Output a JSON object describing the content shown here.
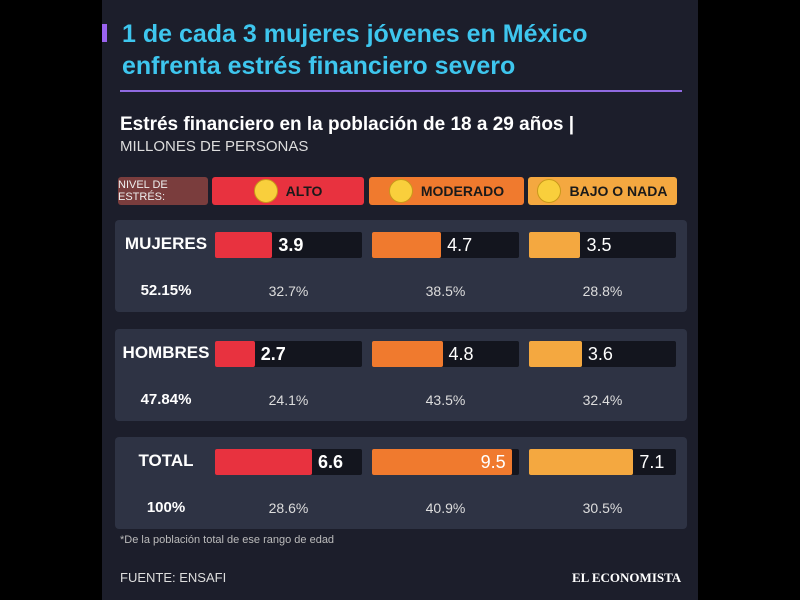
{
  "chart_data": {
    "type": "bar",
    "title": "1 de cada 3 mujeres jóvenes en México enfrenta estrés financiero severo",
    "subtitle": "Estrés financiero en la población de 18 a 29 años |",
    "unit_label": "MILLONES DE PERSONAS",
    "legend_title": "NIVEL DE ESTRÉS:",
    "categories": [
      "MUJERES",
      "HOMBRES",
      "TOTAL"
    ],
    "shares": [
      52.15,
      47.84,
      100
    ],
    "share_labels": [
      "52.15%",
      "47.84%",
      "100%"
    ],
    "xlim": [
      0,
      10
    ],
    "series": [
      {
        "name": "ALTO",
        "color": "#e8323f",
        "values": [
          3.9,
          2.7,
          6.6
        ],
        "percents": [
          32.7,
          24.1,
          28.6
        ],
        "percent_labels": [
          "32.7%",
          "24.1%",
          "28.6%"
        ]
      },
      {
        "name": "MODERADO",
        "color": "#f07a2e",
        "values": [
          4.7,
          4.8,
          9.5
        ],
        "percents": [
          38.5,
          43.5,
          40.9
        ],
        "percent_labels": [
          "38.5%",
          "43.5%",
          "40.9%"
        ]
      },
      {
        "name": "BAJO O NADA",
        "color": "#f4a840",
        "values": [
          3.5,
          3.6,
          7.1
        ],
        "percents": [
          28.8,
          32.4,
          30.5
        ],
        "percent_labels": [
          "28.8%",
          "32.4%",
          "30.5%"
        ]
      }
    ],
    "footnote": "*De la población total de ese rango de edad",
    "source": "FUENTE: ENSAFI",
    "brand": "EL ECONOMISTA"
  }
}
